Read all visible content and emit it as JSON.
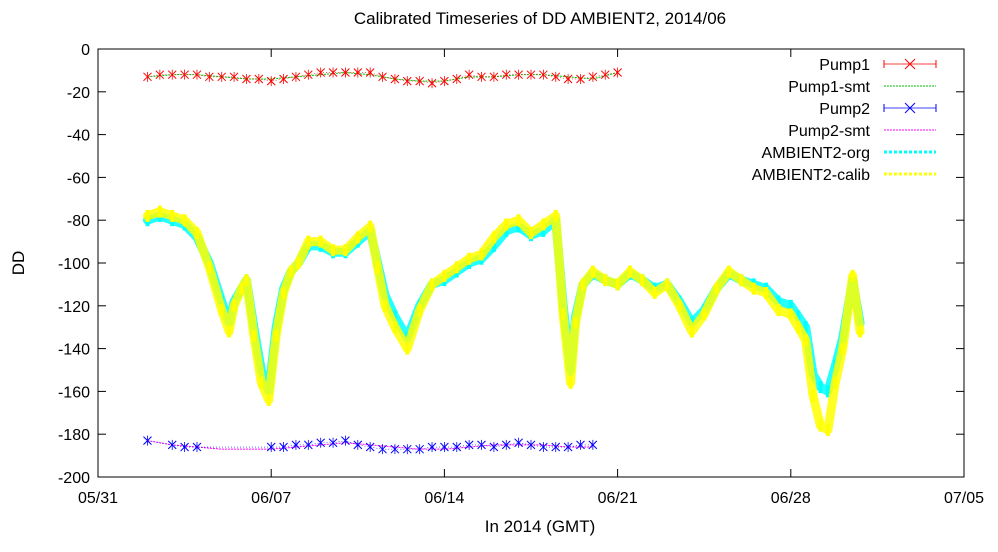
{
  "chart_data": {
    "type": "line",
    "title": "Calibrated Timeseries of DD AMBIENT2, 2014/06",
    "xlabel": "In 2014 (GMT)",
    "ylabel": "DD",
    "x_unit": "day-of-month-2014-06",
    "xlim": [
      0,
      35
    ],
    "ylim": [
      -200,
      0
    ],
    "xticks": [
      {
        "value": 0,
        "label": "05/31"
      },
      {
        "value": 7,
        "label": "06/07"
      },
      {
        "value": 14,
        "label": "06/14"
      },
      {
        "value": 21,
        "label": "06/21"
      },
      {
        "value": 28,
        "label": "06/28"
      },
      {
        "value": 35,
        "label": "07/05"
      }
    ],
    "yticks": [
      0,
      -20,
      -40,
      -60,
      -80,
      -100,
      -120,
      -140,
      -160,
      -180,
      -200
    ],
    "grid": false,
    "legend_position": "top-right",
    "series": [
      {
        "name": "Pump1",
        "style": "points-errorbars",
        "marker": "x",
        "color": "#ff0000",
        "x": [
          2.0,
          2.5,
          3.0,
          3.5,
          4.0,
          4.5,
          5.0,
          5.5,
          6.0,
          6.5,
          7.0,
          7.5,
          8.0,
          8.5,
          9.0,
          9.5,
          10.0,
          10.5,
          11.0,
          11.5,
          12.0,
          12.5,
          13.0,
          13.5,
          14.0,
          14.5,
          15.0,
          15.5,
          16.0,
          16.5,
          17.0,
          17.5,
          18.0,
          18.5,
          19.0,
          19.5,
          20.0,
          20.5,
          21.0
        ],
        "y": [
          -13,
          -12,
          -12,
          -12,
          -12,
          -13,
          -13,
          -13,
          -14,
          -14,
          -15,
          -14,
          -13,
          -12,
          -11,
          -11,
          -11,
          -11,
          -11,
          -13,
          -14,
          -15,
          -15,
          -16,
          -15,
          -14,
          -12,
          -13,
          -13,
          -12,
          -12,
          -12,
          -12,
          -13,
          -14,
          -14,
          -13,
          -12,
          -11
        ]
      },
      {
        "name": "Pump1-smt",
        "style": "line",
        "color": "#00c000",
        "x": [
          2.0,
          3.0,
          4.0,
          5.0,
          6.0,
          7.0,
          8.0,
          9.0,
          10.0,
          11.0,
          12.0,
          13.0,
          14.0,
          15.0,
          16.0,
          17.0,
          18.0,
          19.0,
          20.0,
          21.0
        ],
        "y": [
          -13,
          -12,
          -12,
          -13,
          -14,
          -14,
          -13,
          -12,
          -11,
          -12,
          -14,
          -15,
          -15,
          -13,
          -13,
          -12,
          -12,
          -13,
          -14,
          -11
        ]
      },
      {
        "name": "Pump2",
        "style": "points-errorbars",
        "marker": "x",
        "color": "#0000ff",
        "x": [
          2.0,
          3.0,
          3.5,
          4.0,
          7.0,
          7.5,
          8.0,
          8.5,
          9.0,
          9.5,
          10.0,
          10.5,
          11.0,
          11.5,
          12.0,
          12.5,
          13.0,
          13.5,
          14.0,
          14.5,
          15.0,
          15.5,
          16.0,
          16.5,
          17.0,
          17.5,
          18.0,
          18.5,
          19.0,
          19.5,
          20.0
        ],
        "y": [
          -183,
          -185,
          -186,
          -186,
          -186,
          -186,
          -185,
          -185,
          -184,
          -184,
          -183,
          -185,
          -186,
          -187,
          -187,
          -187,
          -187,
          -186,
          -186,
          -186,
          -185,
          -185,
          -186,
          -185,
          -184,
          -185,
          -186,
          -186,
          -186,
          -185,
          -185
        ]
      },
      {
        "name": "Pump2-smt",
        "style": "line",
        "color": "#ff00ff",
        "x": [
          2.0,
          3.0,
          4.0,
          5.0,
          6.0,
          7.0,
          8.0,
          9.0,
          10.0,
          11.0,
          12.0,
          13.0,
          14.0,
          15.0,
          16.0,
          17.0,
          18.0,
          19.0,
          20.0
        ],
        "y": [
          -183,
          -185,
          -186,
          -187,
          -187,
          -187,
          -186,
          -185,
          -184,
          -185,
          -186,
          -187,
          -187,
          -186,
          -185,
          -185,
          -185,
          -186,
          -186
        ]
      },
      {
        "name": "AMBIENT2-org",
        "style": "dense-points",
        "color": "#00ffff",
        "x": [
          2.0,
          2.5,
          3.0,
          3.5,
          4.0,
          4.5,
          5.0,
          5.3,
          5.5,
          5.8,
          6.0,
          6.3,
          6.6,
          6.9,
          7.2,
          7.5,
          7.8,
          8.1,
          8.5,
          9.0,
          9.5,
          10.0,
          10.5,
          11.0,
          11.3,
          11.6,
          12.0,
          12.5,
          13.0,
          13.5,
          14.0,
          14.5,
          15.0,
          15.5,
          16.0,
          16.5,
          17.0,
          17.5,
          18.0,
          18.5,
          18.8,
          19.1,
          19.3,
          19.6,
          20.0,
          20.5,
          21.0,
          21.5,
          22.0,
          22.5,
          23.0,
          23.5,
          24.0,
          24.5,
          25.0,
          25.5,
          26.0,
          26.5,
          27.0,
          27.5,
          28.0,
          28.3,
          28.6,
          28.9,
          29.2,
          29.5,
          29.8,
          30.1,
          30.5,
          30.8
        ],
        "y": [
          -80,
          -78,
          -80,
          -82,
          -88,
          -100,
          -118,
          -128,
          -118,
          -112,
          -108,
          -130,
          -150,
          -160,
          -130,
          -112,
          -104,
          -100,
          -92,
          -92,
          -95,
          -95,
          -90,
          -85,
          -100,
          -115,
          -125,
          -135,
          -120,
          -110,
          -108,
          -104,
          -100,
          -98,
          -92,
          -85,
          -83,
          -87,
          -85,
          -80,
          -120,
          -150,
          -125,
          -110,
          -105,
          -108,
          -110,
          -105,
          -108,
          -112,
          -110,
          -118,
          -128,
          -122,
          -112,
          -105,
          -108,
          -110,
          -112,
          -118,
          -120,
          -125,
          -130,
          -152,
          -158,
          -160,
          -148,
          -135,
          -108,
          -128
        ]
      },
      {
        "name": "AMBIENT2-calib",
        "style": "dense-points",
        "color": "#ffff00",
        "x": [
          2.0,
          2.5,
          3.0,
          3.5,
          4.0,
          4.5,
          5.0,
          5.3,
          5.5,
          5.8,
          6.0,
          6.3,
          6.6,
          6.9,
          7.2,
          7.5,
          7.8,
          8.1,
          8.5,
          9.0,
          9.5,
          10.0,
          10.5,
          11.0,
          11.3,
          11.6,
          12.0,
          12.5,
          13.0,
          13.5,
          14.0,
          14.5,
          15.0,
          15.5,
          16.0,
          16.5,
          17.0,
          17.5,
          18.0,
          18.5,
          18.8,
          19.1,
          19.3,
          19.6,
          20.0,
          20.5,
          21.0,
          21.5,
          22.0,
          22.5,
          23.0,
          23.5,
          24.0,
          24.5,
          25.0,
          25.5,
          26.0,
          26.5,
          27.0,
          27.5,
          28.0,
          28.3,
          28.6,
          28.9,
          29.2,
          29.5,
          29.8,
          30.1,
          30.5,
          30.8
        ],
        "y": [
          -78,
          -76,
          -78,
          -80,
          -86,
          -102,
          -122,
          -132,
          -120,
          -112,
          -108,
          -134,
          -156,
          -164,
          -134,
          -114,
          -104,
          -100,
          -90,
          -90,
          -94,
          -94,
          -88,
          -83,
          -102,
          -120,
          -130,
          -140,
          -122,
          -110,
          -106,
          -102,
          -98,
          -96,
          -88,
          -82,
          -80,
          -86,
          -82,
          -78,
          -124,
          -156,
          -128,
          -110,
          -104,
          -108,
          -110,
          -104,
          -108,
          -114,
          -110,
          -120,
          -132,
          -124,
          -112,
          -104,
          -108,
          -112,
          -114,
          -122,
          -124,
          -130,
          -136,
          -162,
          -176,
          -178,
          -156,
          -140,
          -106,
          -132
        ]
      }
    ]
  }
}
